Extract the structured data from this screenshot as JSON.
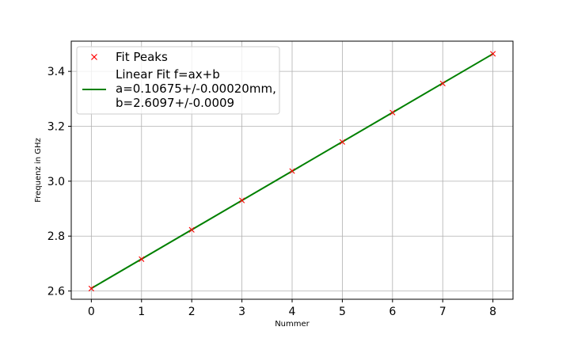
{
  "chart_data": {
    "type": "scatter",
    "title": "",
    "xlabel": "Nummer",
    "ylabel": "Frequenz in GHz",
    "xlim": [
      -0.4,
      8.4
    ],
    "ylim": [
      2.57,
      3.51
    ],
    "x_ticks": [
      0,
      1,
      2,
      3,
      4,
      5,
      6,
      7,
      8
    ],
    "y_ticks": [
      2.6,
      2.8,
      3.0,
      3.2,
      3.4
    ],
    "x_tick_labels": [
      "0",
      "1",
      "2",
      "3",
      "4",
      "5",
      "6",
      "7",
      "8"
    ],
    "y_tick_labels": [
      "2.6",
      "2.8",
      "3.0",
      "3.2",
      "3.4"
    ],
    "grid": true,
    "legend_position": "top-left",
    "series": [
      {
        "name": "Fit Peaks",
        "kind": "scatter",
        "marker": "x",
        "color": "#ff0000",
        "x": [
          0,
          1,
          2,
          3,
          4,
          5,
          6,
          7,
          8
        ],
        "y": [
          2.609,
          2.716,
          2.823,
          2.93,
          3.037,
          3.143,
          3.25,
          3.356,
          3.464
        ]
      },
      {
        "name": "Linear Fit f=ax+b",
        "kind": "line",
        "color": "#008000",
        "slope": 0.10675,
        "intercept": 2.6097,
        "x": [
          0,
          8
        ],
        "y": [
          2.6097,
          3.4637
        ]
      }
    ],
    "legend": {
      "entries": [
        {
          "label_lines": [
            "Fit Peaks"
          ]
        },
        {
          "label_lines": [
            "Linear Fit f=ax+b",
            "a=0.10675+/-0.00020mm,",
            "b=2.6097+/-0.0009"
          ]
        }
      ]
    }
  }
}
